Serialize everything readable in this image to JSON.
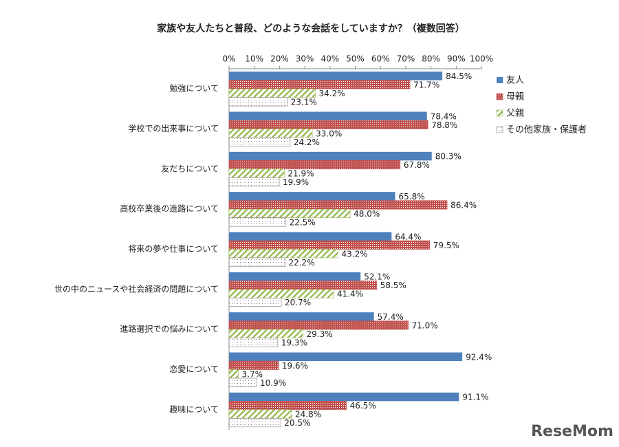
{
  "chart_data": {
    "type": "bar",
    "orientation": "horizontal",
    "title": "家族や友人たちと普段、どのような会話をしていますか？（複数回答）",
    "categories": [
      "勉強について",
      "学校での出来事について",
      "友だちについて",
      "高校卒業後の進路について",
      "将来の夢や仕事について",
      "世の中のニュースや社会経済の問題について",
      "進路選択での悩みについて",
      "恋愛について",
      "趣味について"
    ],
    "series": [
      {
        "name": "友人",
        "color": "#4f81bd",
        "pattern": "solid",
        "values": [
          84.5,
          78.4,
          80.3,
          65.8,
          64.4,
          52.1,
          57.4,
          92.4,
          91.1
        ],
        "value_labels": [
          "84.5%",
          "78.4%",
          "80.3%",
          "65.8%",
          "64.4%",
          "52.1%",
          "57.4%",
          "92.4%",
          "91.1%"
        ]
      },
      {
        "name": "母親",
        "color": "#c0504d",
        "pattern": "dots",
        "values": [
          71.7,
          78.8,
          67.8,
          86.4,
          79.5,
          58.5,
          71.0,
          19.6,
          46.5
        ],
        "value_labels": [
          "71.7%",
          "78.8%",
          "67.8%",
          "86.4%",
          "79.5%",
          "58.5%",
          "71.0%",
          "19.6%",
          "46.5%"
        ]
      },
      {
        "name": "父親",
        "color": "#9bbb59",
        "pattern": "stripes",
        "values": [
          34.2,
          33.0,
          21.9,
          48.0,
          43.2,
          41.4,
          29.3,
          3.7,
          24.8
        ],
        "value_labels": [
          "34.2%",
          "33.0%",
          "21.9%",
          "48.0%",
          "43.2%",
          "41.4%",
          "29.3%",
          "3.7%",
          "24.8%"
        ]
      },
      {
        "name": "その他家族・保護者",
        "color": "#7f7f7f",
        "pattern": "sparse-dots",
        "values": [
          23.1,
          24.2,
          19.9,
          22.5,
          22.2,
          20.7,
          19.3,
          10.9,
          20.5
        ],
        "value_labels": [
          "23.1%",
          "24.2%",
          "19.9%",
          "22.5%",
          "22.2%",
          "20.7%",
          "19.3%",
          "10.9%",
          "20.5%"
        ]
      }
    ],
    "xlim": [
      0,
      100
    ],
    "xticks": [
      {
        "value": 0,
        "label": "0%"
      },
      {
        "value": 10,
        "label": "10%"
      },
      {
        "value": 20,
        "label": "20%"
      },
      {
        "value": 30,
        "label": "30%"
      },
      {
        "value": 40,
        "label": "40%"
      },
      {
        "value": 50,
        "label": "50%"
      },
      {
        "value": 60,
        "label": "60%"
      },
      {
        "value": 70,
        "label": "70%"
      },
      {
        "value": 80,
        "label": "80%"
      },
      {
        "value": 90,
        "label": "90%"
      },
      {
        "value": 100,
        "label": "100%"
      }
    ],
    "grid": false,
    "legend": "right",
    "watermark": "ReseMom"
  }
}
